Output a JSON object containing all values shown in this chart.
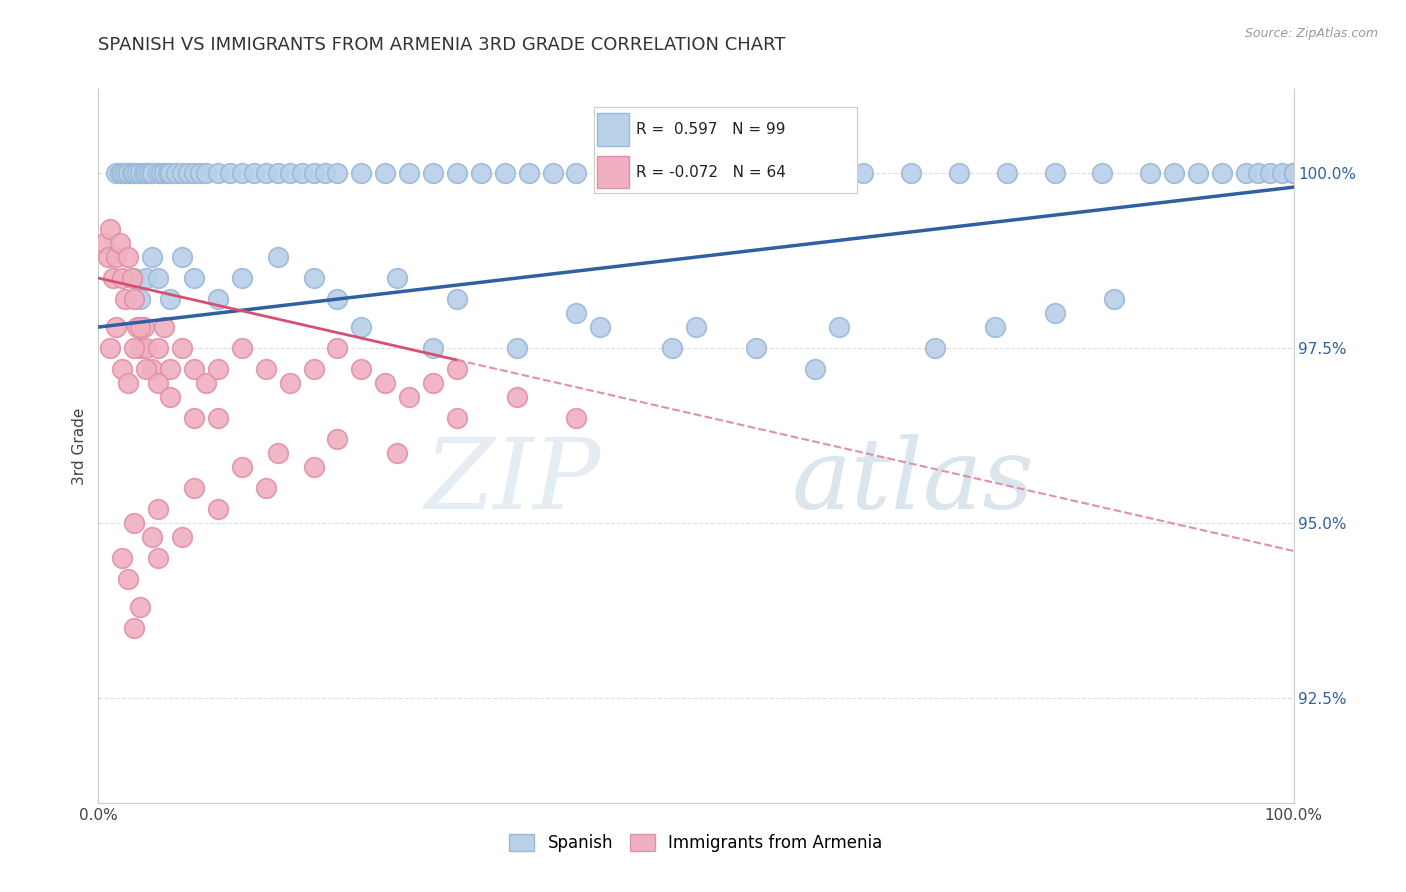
{
  "title": "SPANISH VS IMMIGRANTS FROM ARMENIA 3RD GRADE CORRELATION CHART",
  "source": "Source: ZipAtlas.com",
  "ylabel": "3rd Grade",
  "ylabel_right_labels": [
    "100.0%",
    "97.5%",
    "95.0%",
    "92.5%"
  ],
  "ylabel_right_values": [
    100.0,
    97.5,
    95.0,
    92.5
  ],
  "legend_blue_label": "Spanish",
  "legend_pink_label": "Immigrants from Armenia",
  "r_blue": 0.597,
  "n_blue": 99,
  "r_pink": -0.072,
  "n_pink": 64,
  "blue_dot_color": "#b8d0e8",
  "blue_dot_edge": "#9ab8d8",
  "blue_line_color": "#3060a0",
  "pink_dot_color": "#f0b0c0",
  "pink_dot_edge": "#e090a8",
  "pink_line_color": "#d85070",
  "pink_line_dash_color": "#e090a8",
  "watermark_zip_color": "#d8e8f0",
  "watermark_atlas_color": "#c8d8e8",
  "xmin": 0.0,
  "xmax": 100.0,
  "ymin": 91.0,
  "ymax": 101.2,
  "grid_color": "#dddddd",
  "blue_line_start_x": 0.0,
  "blue_line_start_y": 97.8,
  "blue_line_end_x": 100.0,
  "blue_line_end_y": 99.8,
  "pink_line_start_x": 0.0,
  "pink_line_start_y": 98.5,
  "pink_line_end_x": 100.0,
  "pink_line_end_y": 94.6,
  "pink_solid_end_x": 30.0,
  "blue_scatter_x": [
    1.5,
    1.8,
    2.0,
    2.2,
    2.5,
    2.8,
    3.0,
    3.2,
    3.5,
    3.8,
    4.0,
    4.2,
    4.5,
    5.0,
    5.2,
    5.5,
    5.8,
    6.0,
    6.5,
    7.0,
    7.5,
    8.0,
    8.5,
    9.0,
    10.0,
    11.0,
    12.0,
    13.0,
    14.0,
    15.0,
    16.0,
    17.0,
    18.0,
    19.0,
    20.0,
    22.0,
    24.0,
    26.0,
    28.0,
    30.0,
    32.0,
    34.0,
    36.0,
    38.0,
    40.0,
    44.0,
    48.0,
    52.0,
    56.0,
    60.0,
    64.0,
    68.0,
    72.0,
    76.0,
    80.0,
    84.0,
    88.0,
    90.0,
    92.0,
    94.0,
    96.0,
    97.0,
    98.0,
    99.0,
    100.0,
    100.0,
    100.0,
    100.0,
    100.0,
    100.0,
    3.0,
    3.5,
    4.0,
    4.5,
    5.0,
    6.0,
    7.0,
    8.0,
    10.0,
    12.0,
    15.0,
    18.0,
    20.0,
    25.0,
    30.0,
    40.0,
    50.0,
    55.0,
    62.0,
    70.0,
    75.0,
    80.0,
    85.0,
    42.0,
    35.0,
    28.0,
    22.0,
    48.0,
    60.0
  ],
  "blue_scatter_y": [
    100.0,
    100.0,
    100.0,
    100.0,
    100.0,
    100.0,
    100.0,
    100.0,
    100.0,
    100.0,
    100.0,
    100.0,
    100.0,
    100.0,
    100.0,
    100.0,
    100.0,
    100.0,
    100.0,
    100.0,
    100.0,
    100.0,
    100.0,
    100.0,
    100.0,
    100.0,
    100.0,
    100.0,
    100.0,
    100.0,
    100.0,
    100.0,
    100.0,
    100.0,
    100.0,
    100.0,
    100.0,
    100.0,
    100.0,
    100.0,
    100.0,
    100.0,
    100.0,
    100.0,
    100.0,
    100.0,
    100.0,
    100.0,
    100.0,
    100.0,
    100.0,
    100.0,
    100.0,
    100.0,
    100.0,
    100.0,
    100.0,
    100.0,
    100.0,
    100.0,
    100.0,
    100.0,
    100.0,
    100.0,
    100.0,
    100.0,
    100.0,
    100.0,
    100.0,
    100.0,
    98.5,
    98.2,
    98.5,
    98.8,
    98.5,
    98.2,
    98.8,
    98.5,
    98.2,
    98.5,
    98.8,
    98.5,
    98.2,
    98.5,
    98.2,
    98.0,
    97.8,
    97.5,
    97.8,
    97.5,
    97.8,
    98.0,
    98.2,
    97.8,
    97.5,
    97.5,
    97.8,
    97.5,
    97.2
  ],
  "pink_scatter_x": [
    0.5,
    0.8,
    1.0,
    1.2,
    1.5,
    1.8,
    2.0,
    2.2,
    2.5,
    2.8,
    3.0,
    3.2,
    3.5,
    3.8,
    4.0,
    4.5,
    5.0,
    5.5,
    6.0,
    7.0,
    8.0,
    9.0,
    10.0,
    12.0,
    14.0,
    16.0,
    18.0,
    20.0,
    22.0,
    24.0,
    26.0,
    28.0,
    30.0,
    35.0,
    1.0,
    1.5,
    2.0,
    2.5,
    3.0,
    3.5,
    4.0,
    5.0,
    6.0,
    8.0,
    10.0,
    15.0,
    20.0,
    12.0,
    8.0,
    5.0,
    3.0,
    2.0,
    2.5,
    4.5,
    3.0,
    30.0,
    25.0,
    18.0,
    14.0,
    10.0,
    7.0,
    5.0,
    3.5,
    40.0
  ],
  "pink_scatter_y": [
    99.0,
    98.8,
    99.2,
    98.5,
    98.8,
    99.0,
    98.5,
    98.2,
    98.8,
    98.5,
    98.2,
    97.8,
    97.5,
    97.8,
    97.5,
    97.2,
    97.5,
    97.8,
    97.2,
    97.5,
    97.2,
    97.0,
    97.2,
    97.5,
    97.2,
    97.0,
    97.2,
    97.5,
    97.2,
    97.0,
    96.8,
    97.0,
    97.2,
    96.8,
    97.5,
    97.8,
    97.2,
    97.0,
    97.5,
    97.8,
    97.2,
    97.0,
    96.8,
    96.5,
    96.5,
    96.0,
    96.2,
    95.8,
    95.5,
    95.2,
    95.0,
    94.5,
    94.2,
    94.8,
    93.5,
    96.5,
    96.0,
    95.8,
    95.5,
    95.2,
    94.8,
    94.5,
    93.8,
    96.5
  ]
}
